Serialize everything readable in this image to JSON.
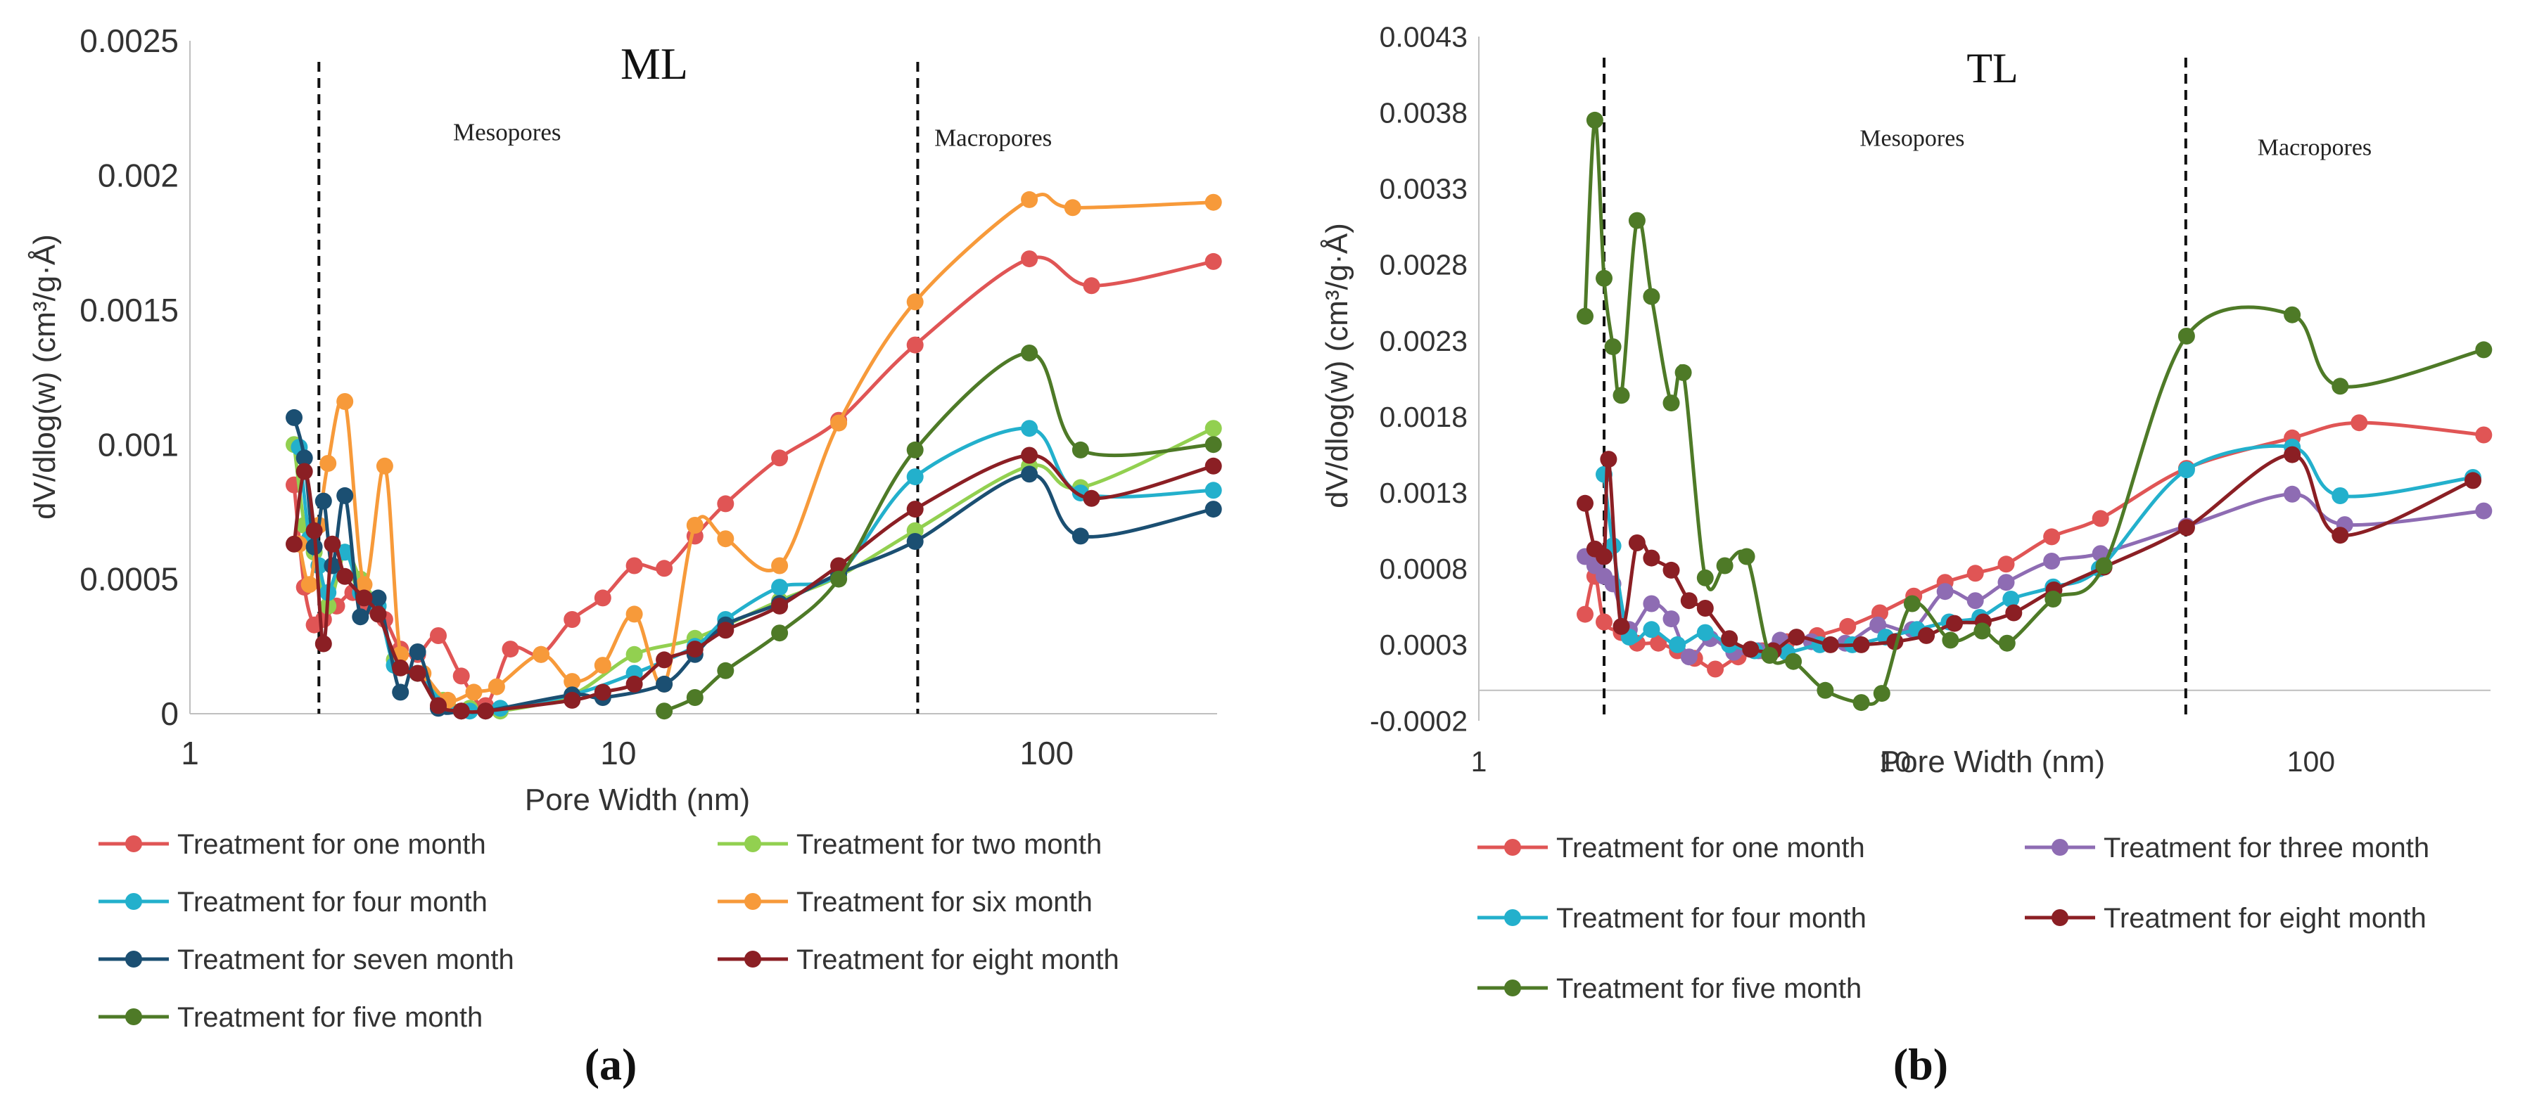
{
  "chart_data": [
    {
      "type": "line",
      "id": "ml",
      "panel_label": "(a)",
      "title": "ML",
      "xlabel": "Pore Width (nm)",
      "ylabel": "dV/dlog(w) (cm³/g·Å)",
      "x_scale": "log",
      "xlim": [
        1,
        250
      ],
      "ylim": [
        0,
        0.0025
      ],
      "x_ticks": [
        1,
        10,
        100
      ],
      "x_tick_labels": [
        "1",
        "10",
        "100"
      ],
      "y_ticks": [
        0,
        0.0005,
        0.001,
        0.0015,
        0.002,
        0.0025
      ],
      "y_tick_labels": [
        "0",
        "0.0005",
        "0.001",
        "0.0015",
        "0.002",
        "0.0025"
      ],
      "vlines": [
        2,
        50
      ],
      "annotations": [
        {
          "text": "Mesopores",
          "x": 5.5,
          "y": 0.00213
        },
        {
          "text": "Macropores",
          "x": 75,
          "y": 0.00211
        }
      ],
      "series": [
        {
          "name": "Treatment for one month",
          "color": "#e05555",
          "x": [
            1.75,
            1.85,
            1.95,
            2.05,
            2.2,
            2.4,
            2.6,
            2.85,
            3.1,
            3.4,
            3.8,
            4.3,
            4.9,
            5.6,
            6.6,
            7.8,
            9.2,
            10.9,
            12.8,
            15.1,
            17.8,
            23.8,
            32.7,
            49.3,
            91.1,
            127.3,
            245
          ],
          "y": [
            0.00085,
            0.00047,
            0.00033,
            0.00035,
            0.0004,
            0.00045,
            0.0004,
            0.00035,
            0.00024,
            0.00022,
            0.00029,
            0.00014,
            3e-05,
            0.00024,
            0.00022,
            0.00035,
            0.00043,
            0.00055,
            0.00054,
            0.00066,
            0.00078,
            0.00095,
            0.00109,
            0.00137,
            0.00169,
            0.00159,
            0.00168
          ]
        },
        {
          "name": "Treatment for two month",
          "color": "#92d050",
          "x": [
            1.75,
            1.85,
            1.95,
            2.1,
            2.3,
            2.5,
            2.75,
            3.0,
            3.4,
            3.9,
            4.5,
            5.3,
            7.8,
            10.9,
            15.1,
            23.8,
            32.7,
            49.3,
            91.1,
            120,
            245
          ],
          "y": [
            0.001,
            0.0007,
            0.0006,
            0.0004,
            0.0006,
            0.0005,
            0.0004,
            0.0002,
            0.00015,
            5e-05,
            2e-05,
            1e-05,
            7e-05,
            0.00022,
            0.00028,
            0.00042,
            0.00051,
            0.00068,
            0.00092,
            0.00084,
            0.00106
          ]
        },
        {
          "name": "Treatment for four month",
          "color": "#23b0cc",
          "x": [
            1.8,
            1.9,
            2.0,
            2.1,
            2.3,
            2.5,
            2.75,
            3.0,
            3.4,
            3.9,
            4.5,
            5.3,
            7.8,
            10.9,
            15.1,
            17.8,
            23.8,
            32.7,
            49.3,
            91.1,
            120,
            245
          ],
          "y": [
            0.00099,
            0.00065,
            0.00055,
            0.00045,
            0.0006,
            0.00045,
            0.0004,
            0.00018,
            0.00015,
            4e-05,
            1e-05,
            2e-05,
            7e-05,
            0.00015,
            0.00025,
            0.00035,
            0.00047,
            0.00052,
            0.00088,
            0.00106,
            0.00082,
            0.00083
          ]
        },
        {
          "name": "Treatment for six month",
          "color": "#f79a3a",
          "x": [
            1.8,
            1.9,
            2.0,
            2.1,
            2.3,
            2.55,
            2.85,
            3.1,
            3.5,
            4.0,
            4.6,
            5.2,
            6.6,
            7.8,
            9.2,
            10.9,
            12.8,
            15.1,
            17.8,
            23.8,
            32.7,
            49.3,
            91.1,
            115,
            245
          ],
          "y": [
            0.00063,
            0.00048,
            0.0007,
            0.00093,
            0.00116,
            0.00048,
            0.00092,
            0.00022,
            0.00015,
            5e-05,
            8e-05,
            0.0001,
            0.00022,
            0.00012,
            0.00018,
            0.00037,
            0.00011,
            0.0007,
            0.00065,
            0.00055,
            0.00108,
            0.00153,
            0.00191,
            0.00188,
            0.0019
          ]
        },
        {
          "name": "Treatment for seven month",
          "color": "#1b4f72",
          "x": [
            1.75,
            1.85,
            1.95,
            2.05,
            2.15,
            2.3,
            2.5,
            2.75,
            3.1,
            3.4,
            3.8,
            4.3,
            4.9,
            7.8,
            9.2,
            12.8,
            15.1,
            17.8,
            23.8,
            32.7,
            49.3,
            91.1,
            120,
            245
          ],
          "y": [
            0.0011,
            0.00095,
            0.00062,
            0.00079,
            0.00055,
            0.00081,
            0.00036,
            0.00043,
            8e-05,
            0.00023,
            2e-05,
            1e-05,
            1e-05,
            7e-05,
            6e-05,
            0.00011,
            0.00022,
            0.00033,
            0.00041,
            0.00052,
            0.00064,
            0.00089,
            0.00066,
            0.00076
          ]
        },
        {
          "name": "Treatment for eight month",
          "color": "#8b1f24",
          "x": [
            1.75,
            1.85,
            1.95,
            2.05,
            2.15,
            2.3,
            2.55,
            2.75,
            3.1,
            3.4,
            3.8,
            4.3,
            4.9,
            7.8,
            9.2,
            10.9,
            12.8,
            15.1,
            17.8,
            23.8,
            32.7,
            49.3,
            91.1,
            127.3,
            245
          ],
          "y": [
            0.00063,
            0.0009,
            0.00068,
            0.00026,
            0.00063,
            0.00051,
            0.00043,
            0.00037,
            0.00017,
            0.00015,
            3e-05,
            1e-05,
            1e-05,
            5e-05,
            8e-05,
            0.00011,
            0.0002,
            0.00024,
            0.00031,
            0.0004,
            0.00055,
            0.00076,
            0.00096,
            0.0008,
            0.00092
          ]
        },
        {
          "name": "Treatment for five month",
          "color": "#4e7a27",
          "x": [
            12.8,
            15.1,
            17.8,
            23.8,
            32.7,
            49.3,
            91.1,
            120,
            245
          ],
          "y": [
            1e-05,
            6e-05,
            0.00016,
            0.0003,
            0.0005,
            0.00098,
            0.00134,
            0.00098,
            0.001
          ]
        }
      ]
    },
    {
      "type": "line",
      "id": "tl",
      "panel_label": "(b)",
      "title": "TL",
      "xlabel": "Pore Width (nm)",
      "ylabel": "dV/dlog(w) (cm³/g·Å)",
      "x_scale": "log",
      "xlim": [
        1,
        270
      ],
      "ylim": [
        -0.0002,
        0.0043
      ],
      "x_ticks": [
        1,
        10,
        100
      ],
      "x_tick_labels": [
        "1",
        "10",
        "100"
      ],
      "y_ticks": [
        -0.0002,
        0.0003,
        0.0008,
        0.0013,
        0.0018,
        0.0023,
        0.0028,
        0.0033,
        0.0038,
        0.0043
      ],
      "y_tick_labels": [
        "-0.0002",
        "0.0003",
        "0.0008",
        "0.0013",
        "0.0018",
        "0.0023",
        "0.0028",
        "0.0033",
        "0.0038",
        "0.0043"
      ],
      "vlines": [
        2,
        50
      ],
      "annotations": [
        {
          "text": "Mesopores",
          "x": 11,
          "y": 0.00358
        },
        {
          "text": "Macropores",
          "x": 102,
          "y": 0.00352
        }
      ],
      "series": [
        {
          "name": "Treatment for one month",
          "color": "#e05555",
          "x": [
            1.8,
            1.9,
            2.0,
            2.2,
            2.4,
            2.7,
            3.0,
            3.3,
            3.7,
            4.2,
            4.8,
            5.5,
            6.5,
            7.7,
            9.2,
            11.1,
            13.2,
            15.6,
            18.5,
            23.8,
            31.2,
            50.2,
            90.1,
            130.5,
            260
          ],
          "y": [
            0.0005,
            0.00075,
            0.00045,
            0.00038,
            0.00031,
            0.00031,
            0.00026,
            0.00021,
            0.00014,
            0.00022,
            0.00026,
            0.00032,
            0.00036,
            0.00042,
            0.00051,
            0.00062,
            0.00071,
            0.00077,
            0.00083,
            0.00101,
            0.00113,
            0.00146,
            0.00166,
            0.00176,
            0.00168
          ]
        },
        {
          "name": "Treatment for three month",
          "color": "#8e6cb3",
          "x": [
            1.8,
            1.9,
            2.0,
            2.1,
            2.3,
            2.6,
            2.9,
            3.2,
            3.6,
            4.1,
            4.7,
            5.3,
            6.3,
            7.6,
            9.1,
            11.0,
            13.2,
            15.6,
            18.5,
            23.8,
            31.2,
            50.2,
            90.1,
            120.5,
            260
          ],
          "y": [
            0.00088,
            0.00082,
            0.00075,
            0.0007,
            0.0004,
            0.00057,
            0.00047,
            0.00022,
            0.00034,
            0.00025,
            0.00026,
            0.00033,
            0.00032,
            0.00031,
            0.00043,
            0.0004,
            0.00065,
            0.00059,
            0.00071,
            0.00085,
            0.0009,
            0.00108,
            0.00129,
            0.00109,
            0.00118
          ]
        },
        {
          "name": "Treatment for four month",
          "color": "#23b0cc",
          "x": [
            2.0,
            2.1,
            2.3,
            2.6,
            3.0,
            3.5,
            4.0,
            4.6,
            5.5,
            6.6,
            7.9,
            9.5,
            11.3,
            13.5,
            16.0,
            19.0,
            24.0,
            31.0,
            50.2,
            90.1,
            117.5,
            245
          ],
          "y": [
            0.00142,
            0.00095,
            0.00035,
            0.0004,
            0.0003,
            0.00038,
            0.0003,
            0.00026,
            0.00025,
            0.0003,
            0.0003,
            0.00035,
            0.0004,
            0.00045,
            0.00048,
            0.0006,
            0.00068,
            0.0008,
            0.00145,
            0.0016,
            0.00128,
            0.0014
          ]
        },
        {
          "name": "Treatment for eight month",
          "color": "#8b1f24",
          "x": [
            1.8,
            1.9,
            2.0,
            2.05,
            2.2,
            2.4,
            2.6,
            2.9,
            3.2,
            3.5,
            4.0,
            4.5,
            5.1,
            5.8,
            7.0,
            8.3,
            10.0,
            11.9,
            13.9,
            16.3,
            19.3,
            24.1,
            31.8,
            50.2,
            90.1,
            117.5,
            245
          ],
          "y": [
            0.00123,
            0.00093,
            0.00088,
            0.00152,
            0.00042,
            0.00097,
            0.00087,
            0.00079,
            0.00059,
            0.00054,
            0.00034,
            0.00027,
            0.00026,
            0.00035,
            0.0003,
            0.0003,
            0.00032,
            0.00036,
            0.00044,
            0.00045,
            0.00051,
            0.00066,
            0.00081,
            0.00107,
            0.00155,
            0.00102,
            0.00138
          ]
        },
        {
          "name": "Treatment for five month",
          "color": "#4e7a27",
          "x": [
            1.8,
            1.9,
            2.0,
            2.1,
            2.2,
            2.4,
            2.6,
            2.9,
            3.1,
            3.5,
            3.9,
            4.4,
            5.0,
            5.7,
            6.8,
            8.3,
            9.3,
            11.0,
            13.6,
            16.2,
            18.6,
            24.0,
            31.8,
            50.2,
            90.1,
            117.5,
            260
          ],
          "y": [
            0.00246,
            0.00375,
            0.00271,
            0.00226,
            0.00194,
            0.00309,
            0.00259,
            0.00189,
            0.00209,
            0.00074,
            0.00082,
            0.00088,
            0.00023,
            0.00019,
            0.0,
            -8e-05,
            -2e-05,
            0.00057,
            0.00033,
            0.00039,
            0.00031,
            0.0006,
            0.00082,
            0.00233,
            0.00247,
            0.002,
            0.00224
          ]
        }
      ]
    }
  ]
}
